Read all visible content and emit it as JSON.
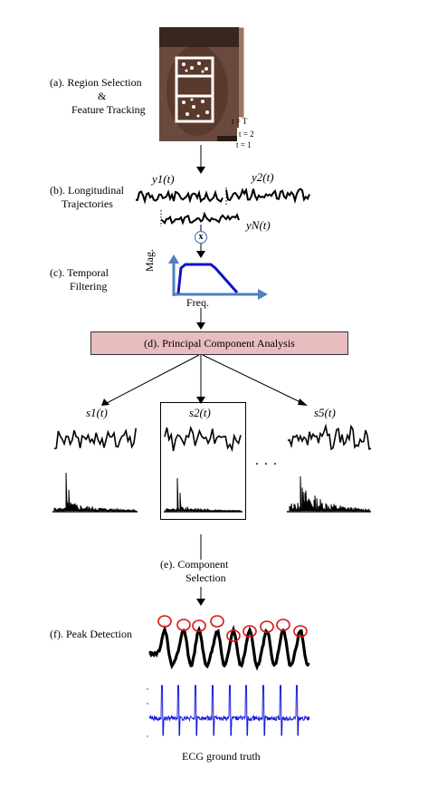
{
  "steps": {
    "a": [
      "(a).  Region Selection",
      "&",
      "Feature Tracking"
    ],
    "b": [
      "(b).  Longitudinal",
      "Trajectories"
    ],
    "c": [
      "(c).  Temporal",
      "Filtering"
    ],
    "d": "(d).  Principal Component Analysis",
    "e": [
      "(e).  Component",
      "Selection"
    ],
    "f": "(f). Peak Detection"
  },
  "frames": [
    "t = T",
    "t = 2",
    "t = 1"
  ],
  "trajectories": [
    "y1(t)",
    "y2(t)",
    "yN(t)"
  ],
  "multiply_symbol": "x",
  "filter_axes": {
    "y": "Mag.",
    "x": "Freq."
  },
  "components": [
    "s1(t)",
    "s2(t)",
    "s5(t)"
  ],
  "ellipsis": ". . .",
  "ecg_caption": "ECG ground truth",
  "colors": {
    "pca_box": "#e9bcc0",
    "filter_axes": "#4f81bd",
    "filter_curve": "#1111cc",
    "peak_circle": "#dd1111",
    "ecg": "#1a1adb"
  }
}
